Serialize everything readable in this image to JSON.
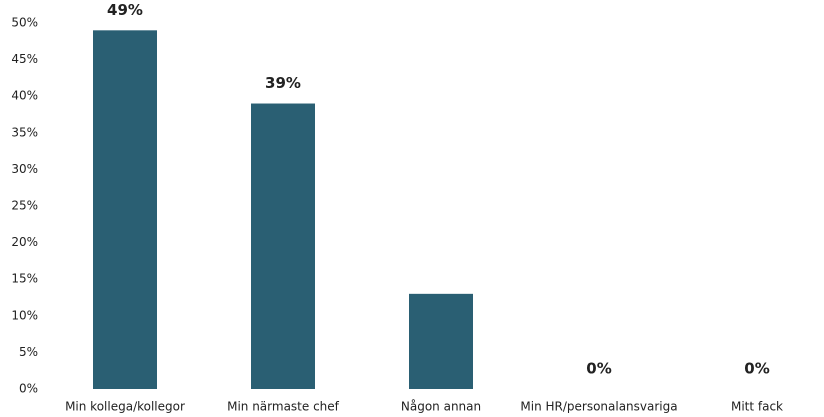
{
  "chart_data": {
    "type": "bar",
    "categories": [
      "Min kollega/kollegor",
      "Min närmaste chef",
      "Någon annan",
      "Min HR/personalansvariga",
      "Mitt fack"
    ],
    "values": [
      49,
      39,
      13,
      0,
      0
    ],
    "value_labels": [
      "49%",
      "39%",
      null,
      "0%",
      "0%"
    ],
    "color": "#2a5f73",
    "ylim": [
      0,
      50
    ],
    "yticks": [
      {
        "value": 0,
        "label": "0%"
      },
      {
        "value": 5,
        "label": "5%"
      },
      {
        "value": 10,
        "label": "10%"
      },
      {
        "value": 15,
        "label": "15%"
      },
      {
        "value": 20,
        "label": "20%"
      },
      {
        "value": 25,
        "label": "25%"
      },
      {
        "value": 30,
        "label": "30%"
      },
      {
        "value": 35,
        "label": "35%"
      },
      {
        "value": 40,
        "label": "40%"
      },
      {
        "value": 45,
        "label": "45%"
      },
      {
        "value": 50,
        "label": "50%"
      }
    ],
    "grid": false
  }
}
